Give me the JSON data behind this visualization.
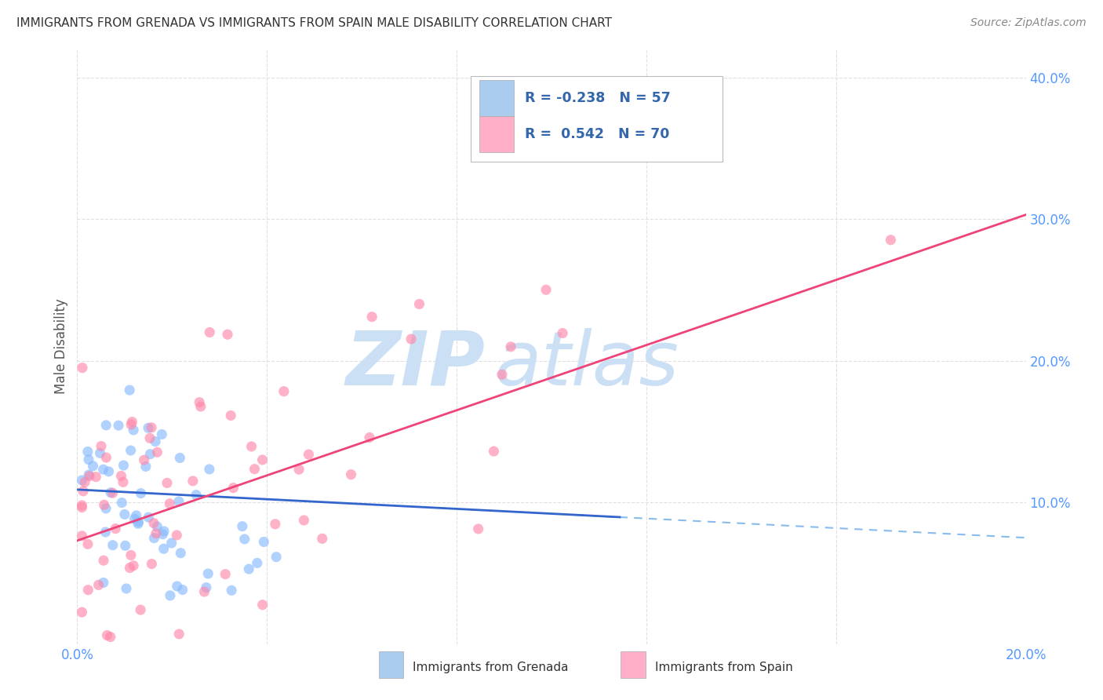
{
  "title": "IMMIGRANTS FROM GRENADA VS IMMIGRANTS FROM SPAIN MALE DISABILITY CORRELATION CHART",
  "source": "Source: ZipAtlas.com",
  "ylabel": "Male Disability",
  "x_min": 0.0,
  "x_max": 0.2,
  "y_min": 0.0,
  "y_max": 0.42,
  "grenada_R": -0.238,
  "grenada_N": 57,
  "spain_R": 0.542,
  "spain_N": 70,
  "grenada_color": "#88bbff",
  "spain_color": "#ff88aa",
  "grenada_line_color": "#3366cc",
  "spain_line_color": "#ee4477",
  "grenada_line_dash_color": "#88bbee",
  "watermark_zip_color": "#cce0f5",
  "watermark_atlas_color": "#cce0f5",
  "background_color": "#ffffff",
  "grid_color": "#e0e0e0",
  "grid_style": "--",
  "title_color": "#333333",
  "tick_label_color": "#5599ff",
  "legend_text_color": "#3366aa",
  "ylabel_color": "#555555",
  "source_color": "#888888"
}
